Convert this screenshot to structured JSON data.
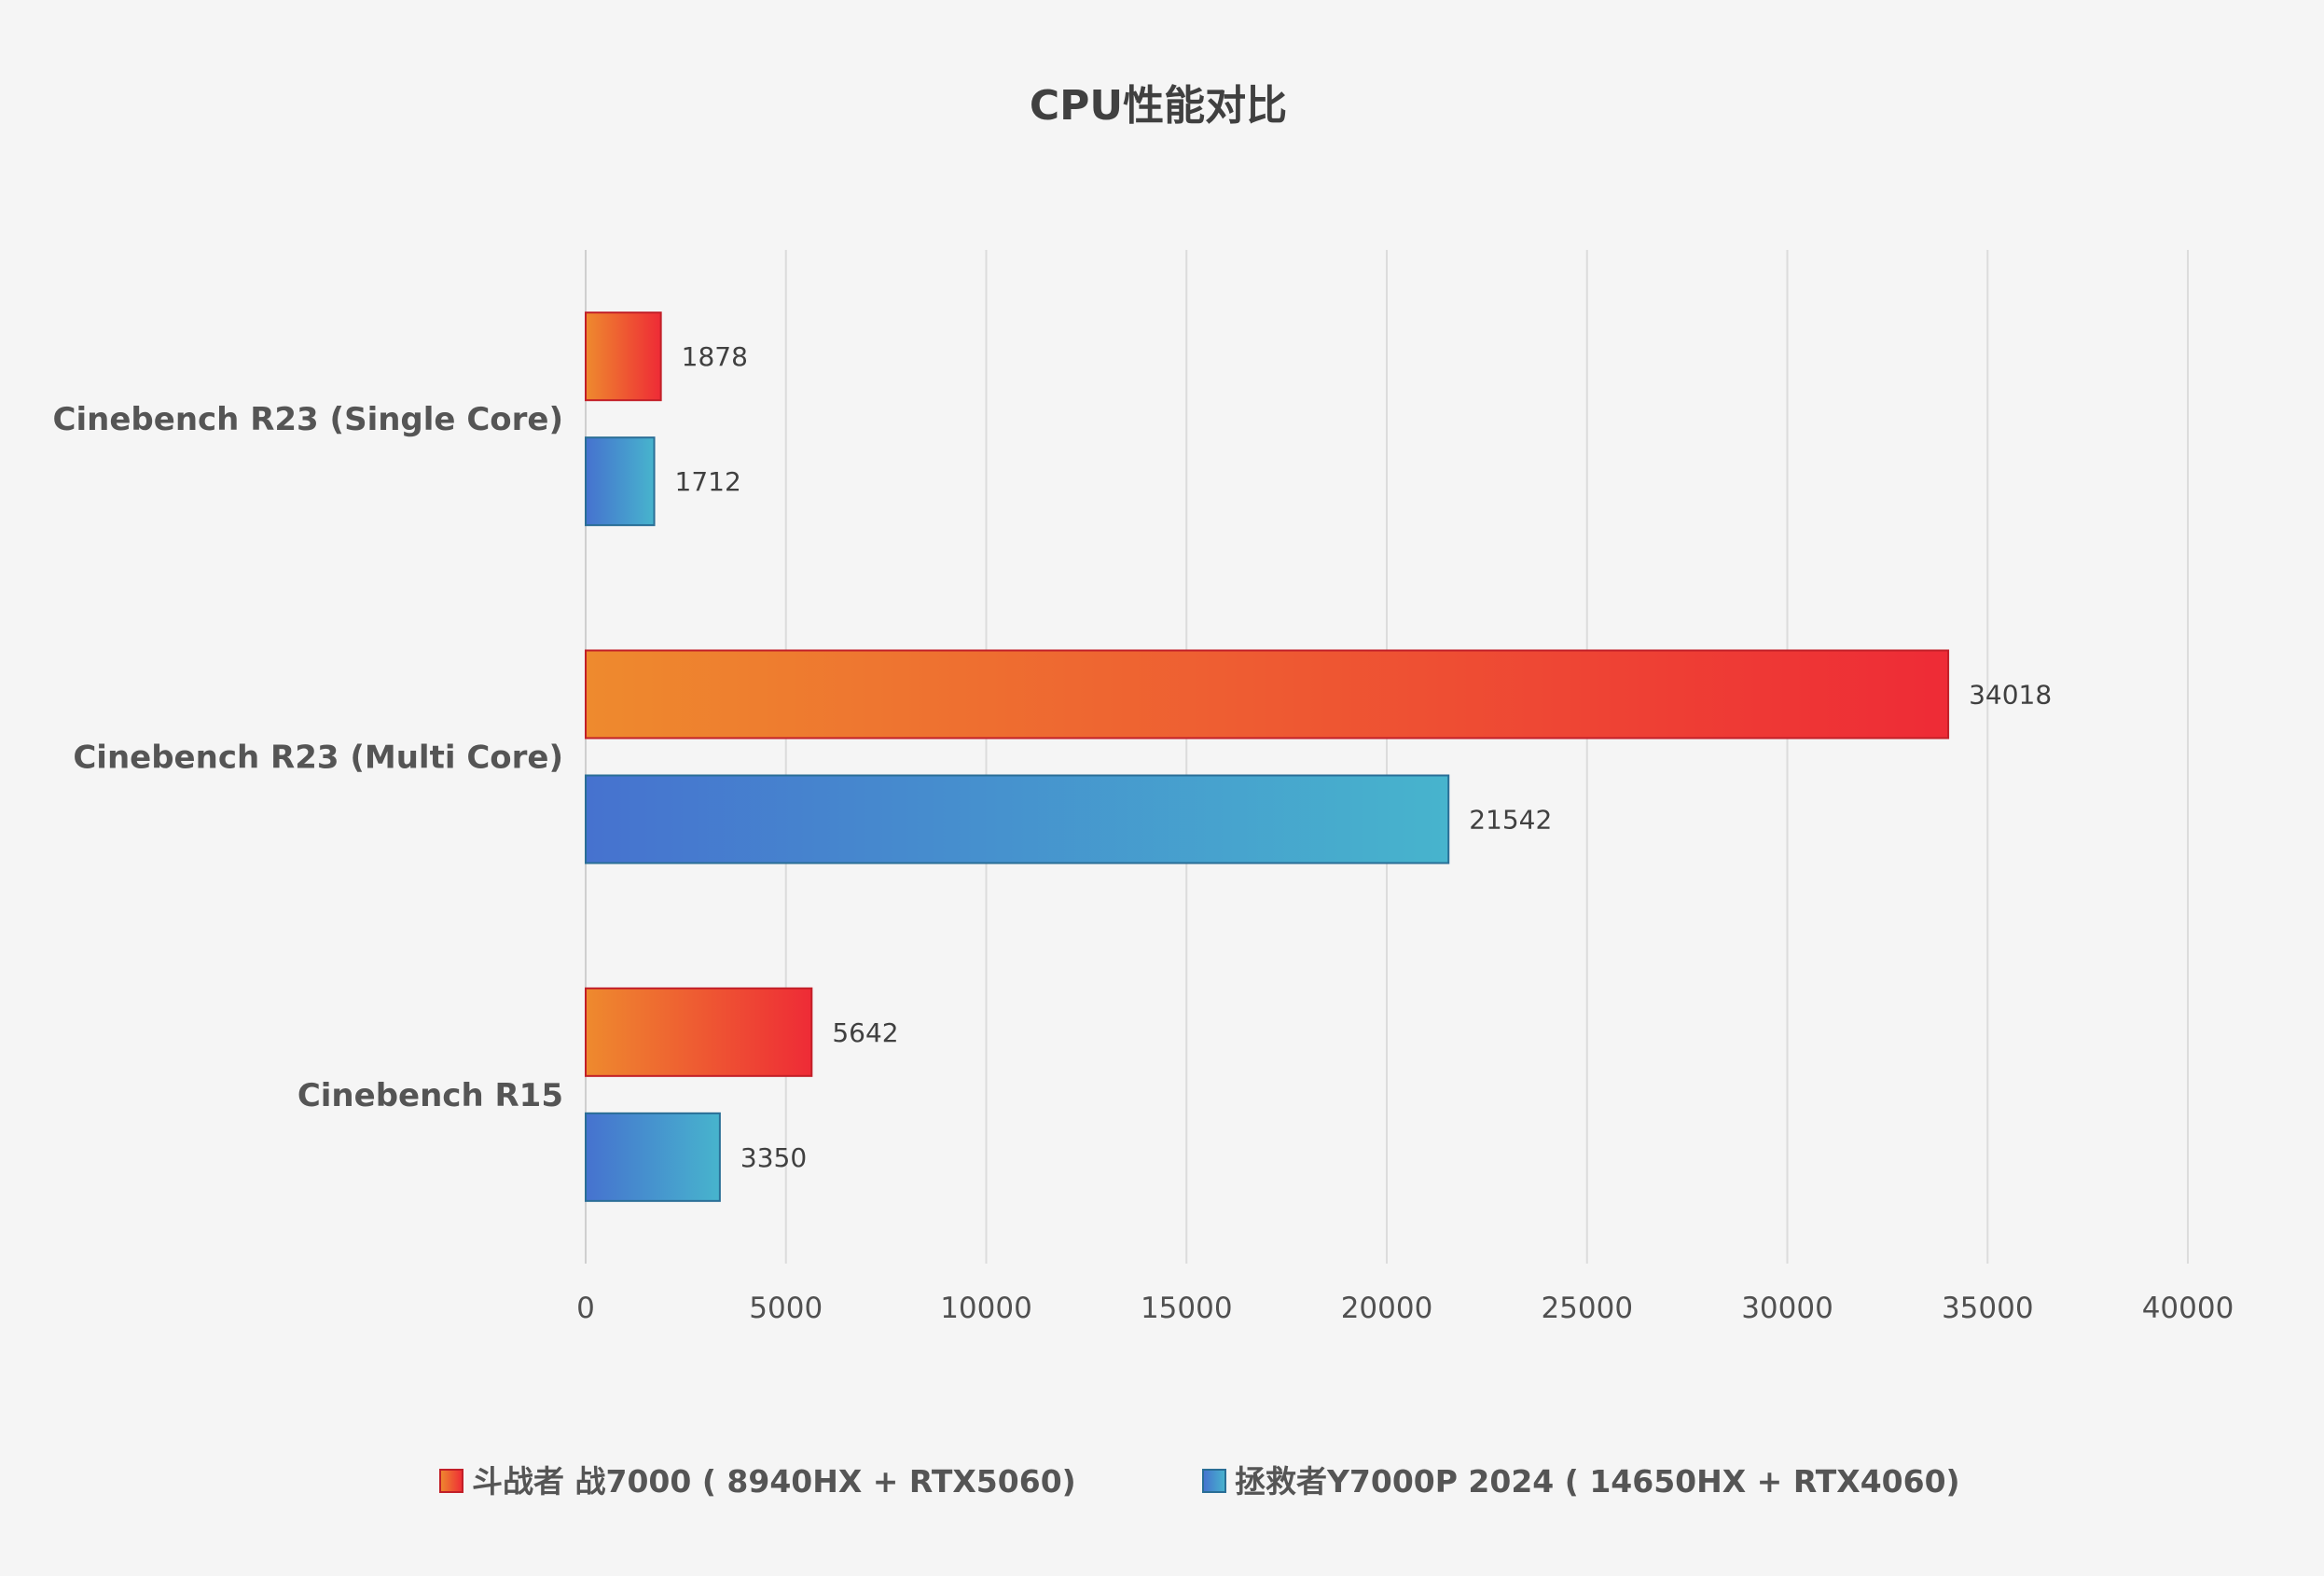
{
  "chart_data": {
    "type": "bar",
    "orientation": "horizontal",
    "title": "CPU性能对比",
    "xlabel": "",
    "ylabel": "",
    "categories": [
      "Cinebench R23 (Single Core)",
      "Cinebench R23 (Multi Core)",
      "Cinebench R15"
    ],
    "series": [
      {
        "name": "斗战者 战7000 ( 8940HX + RTX5060)",
        "values": [
          1878,
          34018,
          5642
        ],
        "color_start": "#EE8A2E",
        "color_end": "#EE2B36",
        "border": "#C21F28"
      },
      {
        "name": "拯救者Y7000P 2024 ( 14650HX + RTX4060)",
        "values": [
          1712,
          21542,
          3350
        ],
        "color_start": "#4672CF",
        "color_end": "#47B4CD",
        "border": "#2A6E96"
      }
    ],
    "xlim": [
      0,
      40000
    ],
    "xticks": [
      0,
      5000,
      10000,
      15000,
      20000,
      25000,
      30000,
      35000,
      40000
    ],
    "grid": true,
    "data_labels": true,
    "legend_position": "bottom"
  },
  "colors": {
    "background": "#f5f5f5",
    "grid": "#dcdcdc",
    "axis": "#cfcfcf",
    "title_text": "#404040",
    "category_text": "#555555",
    "tick_text": "#505050",
    "value_text": "#404040"
  }
}
